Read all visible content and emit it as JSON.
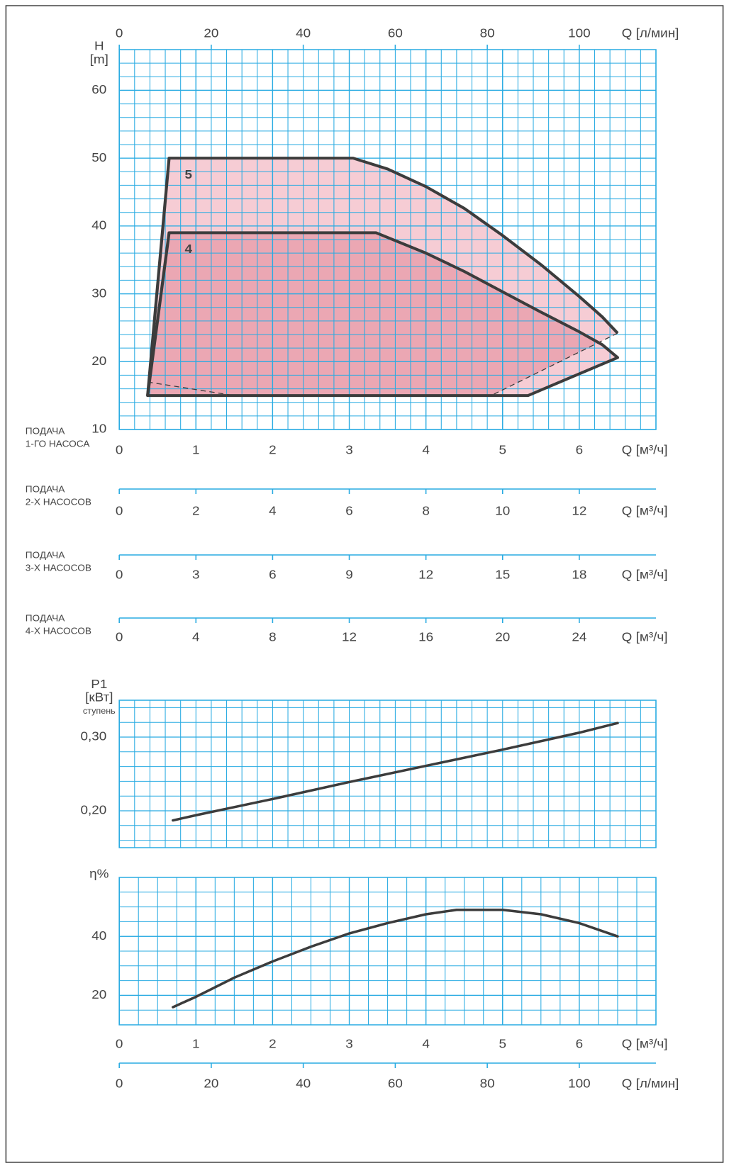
{
  "chart_data": [
    {
      "type": "area",
      "y_label": [
        "H",
        "[m]"
      ],
      "xlim": [
        0,
        7
      ],
      "ylim": [
        10,
        66
      ],
      "xticks": [
        0,
        1,
        2,
        3,
        4,
        5,
        6
      ],
      "yticks": [
        10,
        20,
        30,
        40,
        50,
        60
      ],
      "x_label": "Q [м³/ч]",
      "x_axis_name": [
        "ПОДАЧА",
        "1-ГО НАСОСА"
      ],
      "x2lim": [
        0,
        116.67
      ],
      "x2ticks": [
        0,
        20,
        40,
        60,
        80,
        100
      ],
      "x2_label": "Q [л/мин]",
      "grid": true,
      "minor_grid": 5,
      "grid_color": "#29abe2",
      "line_color": "#3c3c3c",
      "series": [
        {
          "name": "5",
          "color": "#f6ccd4",
          "closing_edge": "dashed",
          "x": [
            0.37,
            0.65,
            3.05,
            3.5,
            4.0,
            4.5,
            5.0,
            5.5,
            6.0,
            6.3,
            6.5,
            4.85
          ],
          "values": [
            15,
            50,
            50,
            48.4,
            45.8,
            42.6,
            38.6,
            34.3,
            29.6,
            26.6,
            24.2,
            15
          ]
        },
        {
          "name": "4",
          "color": "#eba7b3",
          "x": [
            0.37,
            0.65,
            3.35,
            4.0,
            4.5,
            5.0,
            5.5,
            6.0,
            6.3,
            6.5,
            5.33
          ],
          "values": [
            15,
            39,
            39,
            36.0,
            33.3,
            30.3,
            27.3,
            24.4,
            22.5,
            20.6,
            15
          ]
        }
      ],
      "dashed_lines": [
        {
          "x": [
            0.37,
            1.5
          ],
          "values": [
            17,
            15
          ]
        }
      ],
      "flow_axes": [
        {
          "name": [
            "ПОДАЧА",
            "2-Х НАСОСОВ"
          ],
          "xlim": [
            0,
            14
          ],
          "xticks": [
            0,
            2,
            4,
            6,
            8,
            10,
            12
          ],
          "x_label": "Q [м³/ч]"
        },
        {
          "name": [
            "ПОДАЧА",
            "3-Х НАСОСОВ"
          ],
          "xlim": [
            0,
            21
          ],
          "xticks": [
            0,
            3,
            6,
            9,
            12,
            15,
            18
          ],
          "x_label": "Q [м³/ч]"
        },
        {
          "name": [
            "ПОДАЧА",
            "4-Х НАСОСОВ"
          ],
          "xlim": [
            0,
            28
          ],
          "xticks": [
            0,
            4,
            8,
            12,
            16,
            20,
            24
          ],
          "x_label": "Q [м³/ч]"
        }
      ]
    },
    {
      "type": "line",
      "y_label": [
        "P1",
        "[кВт]",
        "ступень"
      ],
      "xlim": [
        0,
        7
      ],
      "ylim": [
        0.15,
        0.35
      ],
      "yticks": [
        {
          "value": 0.2,
          "label": "0,20"
        },
        {
          "value": 0.3,
          "label": "0,30"
        }
      ],
      "grid": true,
      "minor_grid": 5,
      "grid_color": "#29abe2",
      "line_color": "#3c3c3c",
      "x": [
        0.7,
        1,
        2,
        3,
        4,
        5,
        6,
        6.5
      ],
      "values": [
        0.187,
        0.194,
        0.216,
        0.239,
        0.261,
        0.283,
        0.306,
        0.319
      ]
    },
    {
      "type": "line",
      "y_label": [
        "η%"
      ],
      "xlim": [
        0,
        7
      ],
      "ylim": [
        10,
        60
      ],
      "xticks": [
        0,
        1,
        2,
        3,
        4,
        5,
        6
      ],
      "yticks": [
        20,
        40
      ],
      "x_label": "Q [м³/ч]",
      "x2lim": [
        0,
        116.67
      ],
      "x2ticks": [
        0,
        20,
        40,
        60,
        80,
        100
      ],
      "x2_label": "Q [л/мин]",
      "grid": true,
      "minor_grid": 4,
      "grid_color": "#29abe2",
      "line_color": "#3c3c3c",
      "x": [
        0.7,
        1,
        1.5,
        2,
        2.5,
        3,
        3.5,
        4,
        4.4,
        5,
        5.5,
        6,
        6.5
      ],
      "values": [
        16,
        19.5,
        26,
        31.5,
        36.5,
        41,
        44.5,
        47.5,
        49,
        49,
        47.5,
        44.5,
        40
      ]
    }
  ]
}
